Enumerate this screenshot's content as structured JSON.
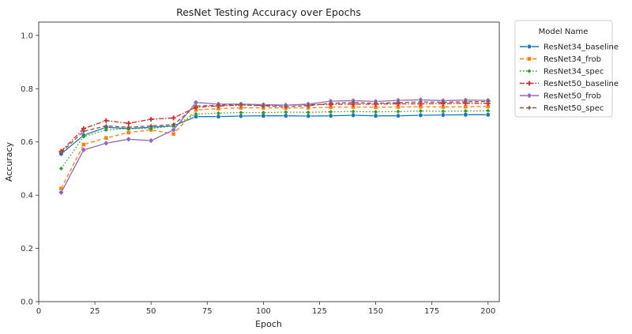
{
  "chart_data": {
    "type": "line",
    "title": "ResNet Testing Accuracy over Epochs",
    "xlabel": "Epoch",
    "ylabel": "Accuracy",
    "xlim": [
      0,
      205
    ],
    "ylim": [
      0.0,
      1.05
    ],
    "xticks": [
      0,
      25,
      50,
      75,
      100,
      125,
      150,
      175,
      200
    ],
    "yticks": [
      0.0,
      0.2,
      0.4,
      0.6,
      0.8,
      1.0
    ],
    "grid": false,
    "legend": {
      "title": "Model Name",
      "placement": "outside-top-right"
    },
    "x": [
      10,
      20,
      30,
      40,
      50,
      60,
      70,
      80,
      90,
      100,
      110,
      120,
      130,
      140,
      150,
      160,
      170,
      180,
      190,
      200
    ],
    "series": [
      {
        "name": "ResNet34_baseline",
        "color": "#1f77b4",
        "marker": "circle",
        "dash": "solid",
        "values": [
          0.555,
          0.625,
          0.655,
          0.65,
          0.655,
          0.66,
          0.695,
          0.695,
          0.697,
          0.698,
          0.698,
          0.697,
          0.698,
          0.7,
          0.698,
          0.698,
          0.7,
          0.701,
          0.702,
          0.702
        ]
      },
      {
        "name": "ResNet34_frob",
        "color": "#ff7f0e",
        "marker": "square",
        "dash": "dashed",
        "values": [
          0.425,
          0.59,
          0.615,
          0.635,
          0.645,
          0.63,
          0.72,
          0.725,
          0.728,
          0.728,
          0.727,
          0.728,
          0.73,
          0.731,
          0.73,
          0.731,
          0.732,
          0.731,
          0.732,
          0.733
        ]
      },
      {
        "name": "ResNet34_spec",
        "color": "#2ca02c",
        "marker": "diamond-small",
        "dash": "dotted",
        "values": [
          0.5,
          0.62,
          0.645,
          0.65,
          0.65,
          0.66,
          0.705,
          0.708,
          0.71,
          0.71,
          0.712,
          0.711,
          0.713,
          0.714,
          0.713,
          0.714,
          0.716,
          0.715,
          0.716,
          0.717
        ]
      },
      {
        "name": "ResNet50_baseline",
        "color": "#d62728",
        "marker": "plus",
        "dash": "dashdot",
        "values": [
          0.565,
          0.65,
          0.68,
          0.67,
          0.685,
          0.69,
          0.73,
          0.735,
          0.738,
          0.737,
          0.738,
          0.74,
          0.741,
          0.742,
          0.742,
          0.743,
          0.743,
          0.744,
          0.745,
          0.745
        ]
      },
      {
        "name": "ResNet50_frob",
        "color": "#9467bd",
        "marker": "diamond",
        "dash": "solid",
        "values": [
          0.41,
          0.57,
          0.595,
          0.61,
          0.605,
          0.645,
          0.748,
          0.742,
          0.742,
          0.74,
          0.738,
          0.742,
          0.753,
          0.755,
          0.752,
          0.756,
          0.758,
          0.755,
          0.757,
          0.756
        ]
      },
      {
        "name": "ResNet50_spec",
        "color": "#8c564b",
        "marker": "star",
        "dash": "dashed",
        "values": [
          0.56,
          0.64,
          0.66,
          0.655,
          0.66,
          0.665,
          0.735,
          0.738,
          0.74,
          0.735,
          0.732,
          0.736,
          0.745,
          0.748,
          0.745,
          0.748,
          0.75,
          0.749,
          0.751,
          0.752
        ]
      }
    ]
  }
}
